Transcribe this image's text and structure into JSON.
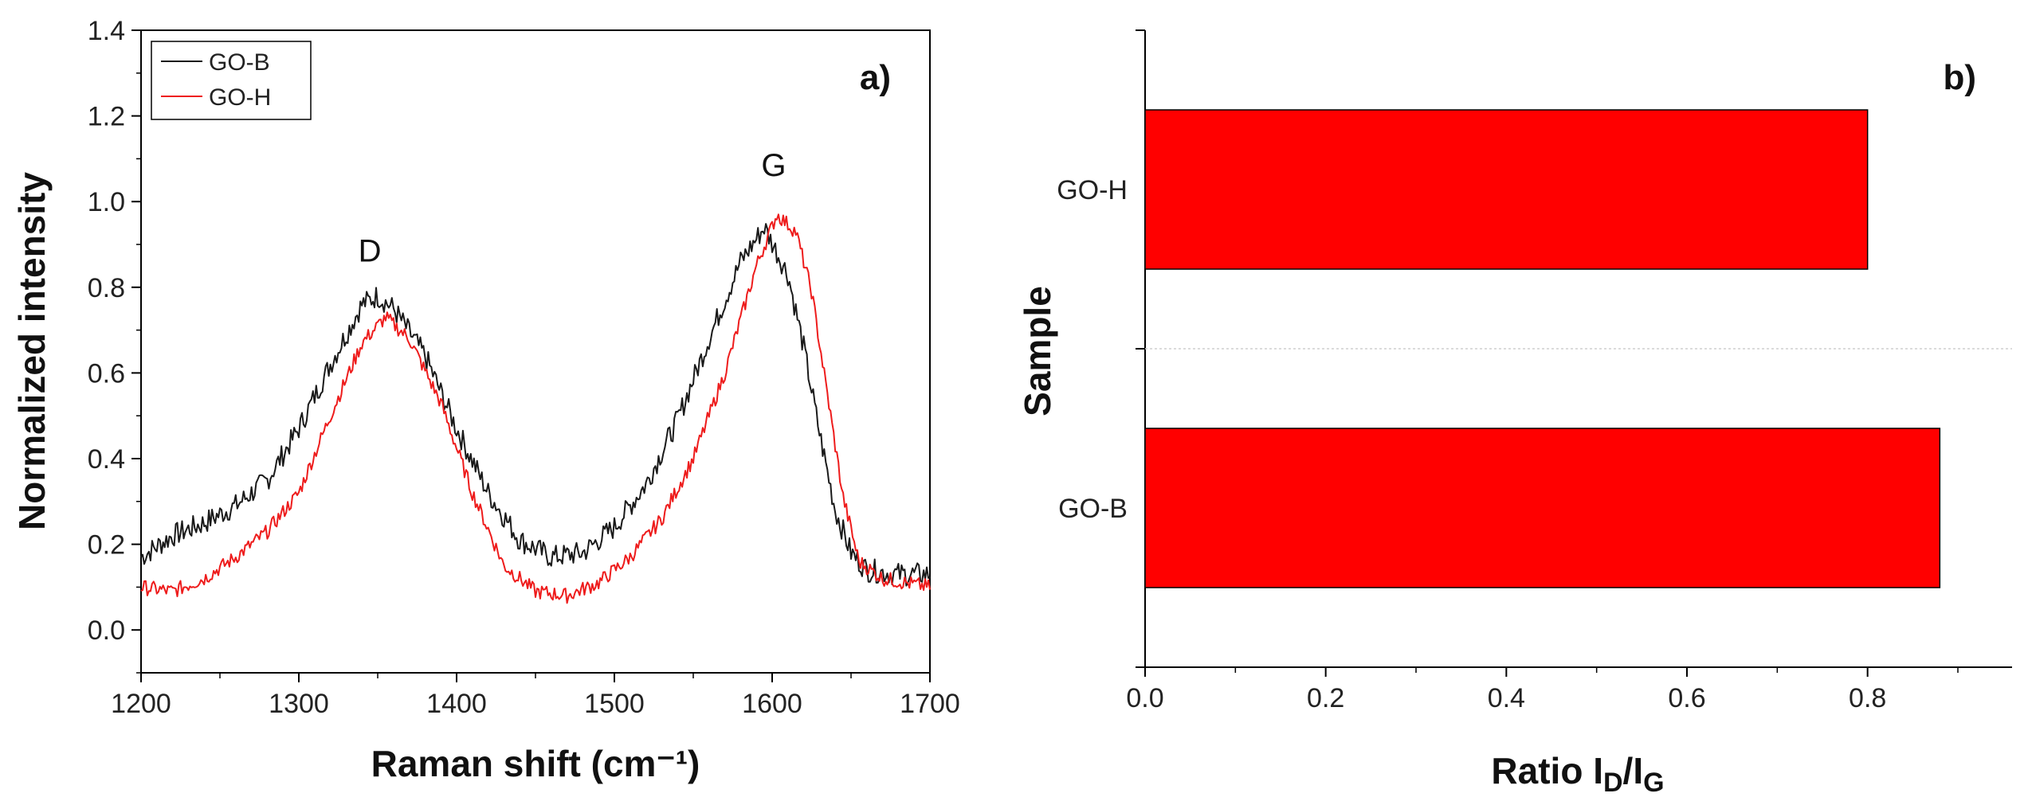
{
  "chart_data": [
    {
      "type": "line",
      "panel_label": "a)",
      "title": "",
      "xlabel": "Raman shift (cm⁻¹)",
      "ylabel": "Normalized intensity",
      "xlim": [
        1200,
        1700
      ],
      "ylim": [
        -0.1,
        1.4
      ],
      "xticks": [
        "1200",
        "1300",
        "1400",
        "1500",
        "1600",
        "1700"
      ],
      "yticks": [
        "0.0",
        "0.2",
        "0.4",
        "0.6",
        "0.8",
        "1.0",
        "1.2",
        "1.4"
      ],
      "annotations": [
        {
          "text": "D",
          "x": 1345,
          "y": 0.86
        },
        {
          "text": "G",
          "x": 1601,
          "y": 1.06
        }
      ],
      "legend_position": "top-left",
      "series": [
        {
          "name": "GO-B",
          "color": "#1a1a1a",
          "points": [
            [
              1200,
              0.17
            ],
            [
              1220,
              0.22
            ],
            [
              1240,
              0.25
            ],
            [
              1260,
              0.29
            ],
            [
              1280,
              0.35
            ],
            [
              1300,
              0.47
            ],
            [
              1320,
              0.62
            ],
            [
              1340,
              0.76
            ],
            [
              1350,
              0.78
            ],
            [
              1360,
              0.75
            ],
            [
              1380,
              0.64
            ],
            [
              1400,
              0.47
            ],
            [
              1420,
              0.32
            ],
            [
              1440,
              0.21
            ],
            [
              1460,
              0.17
            ],
            [
              1480,
              0.18
            ],
            [
              1500,
              0.24
            ],
            [
              1520,
              0.34
            ],
            [
              1540,
              0.49
            ],
            [
              1560,
              0.68
            ],
            [
              1580,
              0.86
            ],
            [
              1595,
              0.94
            ],
            [
              1610,
              0.83
            ],
            [
              1620,
              0.66
            ],
            [
              1630,
              0.46
            ],
            [
              1640,
              0.28
            ],
            [
              1650,
              0.18
            ],
            [
              1660,
              0.14
            ],
            [
              1680,
              0.13
            ],
            [
              1700,
              0.13
            ]
          ]
        },
        {
          "name": "GO-H",
          "color": "#ee1c1c",
          "points": [
            [
              1200,
              0.1
            ],
            [
              1220,
              0.09
            ],
            [
              1240,
              0.12
            ],
            [
              1260,
              0.17
            ],
            [
              1280,
              0.23
            ],
            [
              1300,
              0.32
            ],
            [
              1320,
              0.5
            ],
            [
              1340,
              0.67
            ],
            [
              1355,
              0.73
            ],
            [
              1370,
              0.68
            ],
            [
              1390,
              0.53
            ],
            [
              1410,
              0.32
            ],
            [
              1430,
              0.15
            ],
            [
              1450,
              0.09
            ],
            [
              1470,
              0.08
            ],
            [
              1490,
              0.11
            ],
            [
              1510,
              0.17
            ],
            [
              1530,
              0.26
            ],
            [
              1550,
              0.4
            ],
            [
              1570,
              0.6
            ],
            [
              1590,
              0.85
            ],
            [
              1603,
              0.97
            ],
            [
              1615,
              0.93
            ],
            [
              1625,
              0.79
            ],
            [
              1635,
              0.55
            ],
            [
              1645,
              0.31
            ],
            [
              1655,
              0.16
            ],
            [
              1670,
              0.12
            ],
            [
              1685,
              0.11
            ],
            [
              1700,
              0.1
            ]
          ]
        }
      ]
    },
    {
      "type": "bar",
      "orientation": "horizontal",
      "panel_label": "b)",
      "title": "",
      "xlabel": "Ratio I",
      "xlabel_sub1": "D",
      "xlabel_slash": "/I",
      "xlabel_sub2": "G",
      "ylabel": "Sample",
      "categories": [
        "GO-H",
        "GO-B"
      ],
      "values": [
        0.8,
        0.88
      ],
      "xlim": [
        0,
        0.96
      ],
      "xticks": [
        "0.0",
        "0.2",
        "0.4",
        "0.6",
        "0.8"
      ],
      "bar_color": "#ff0000"
    }
  ]
}
